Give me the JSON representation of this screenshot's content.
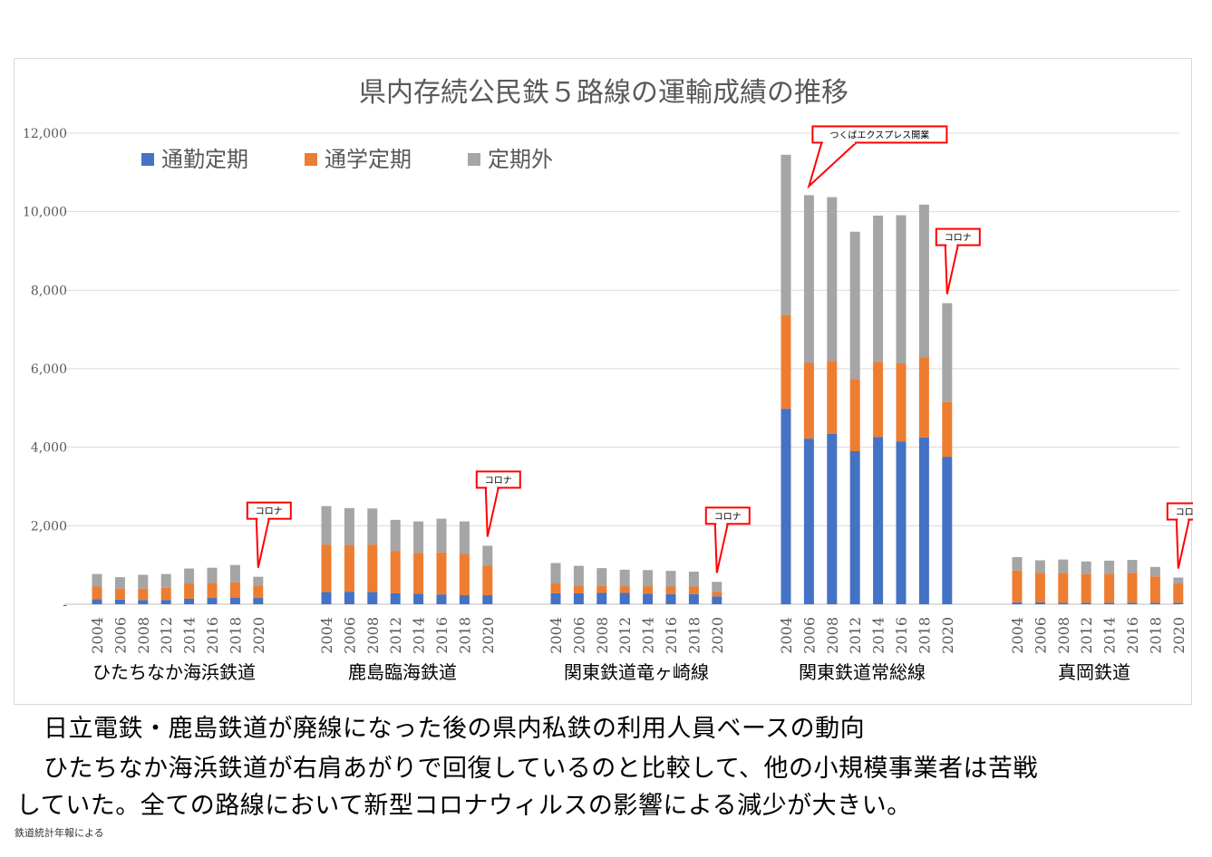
{
  "chart_data": {
    "type": "bar",
    "stacked": true,
    "title": "県内存続公民鉄５路線の運輸成績の推移",
    "ylim": [
      0,
      12000
    ],
    "yticks": [
      "-",
      "2,000",
      "4,000",
      "6,000",
      "8,000",
      "10,000",
      "12,000"
    ],
    "grid": true,
    "legend_position": "top-left",
    "series": [
      {
        "name": "通勤定期",
        "color": "#4472c4"
      },
      {
        "name": "通学定期",
        "color": "#ed7d31"
      },
      {
        "name": "定期外",
        "color": "#a5a5a5"
      }
    ],
    "groups": [
      {
        "name": "ひたちなか海浜鉄道",
        "years": [
          "2004",
          "2006",
          "2008",
          "2012",
          "2014",
          "2016",
          "2018",
          "2020"
        ],
        "commute": [
          130,
          120,
          110,
          110,
          140,
          160,
          170,
          160
        ],
        "school": [
          320,
          280,
          290,
          310,
          390,
          380,
          390,
          320
        ],
        "other": [
          320,
          290,
          350,
          350,
          380,
          390,
          440,
          220
        ]
      },
      {
        "name": "鹿島臨海鉄道",
        "years": [
          "2004",
          "2006",
          "2008",
          "2012",
          "2014",
          "2016",
          "2018",
          "2020"
        ],
        "commute": [
          310,
          320,
          310,
          280,
          270,
          250,
          230,
          230
        ],
        "school": [
          1210,
          1190,
          1210,
          1080,
          1040,
          1070,
          1050,
          760
        ],
        "other": [
          980,
          940,
          920,
          790,
          800,
          860,
          830,
          500
        ]
      },
      {
        "name": "関東鉄道竜ヶ崎線",
        "years": [
          "2004",
          "2006",
          "2008",
          "2012",
          "2014",
          "2016",
          "2018",
          "2020"
        ],
        "commute": [
          280,
          280,
          290,
          290,
          270,
          260,
          260,
          200
        ],
        "school": [
          250,
          200,
          180,
          170,
          190,
          190,
          190,
          110
        ],
        "other": [
          520,
          500,
          450,
          420,
          410,
          400,
          380,
          260
        ]
      },
      {
        "name": "関東鉄道常総線",
        "years": [
          "2004",
          "2006",
          "2008",
          "2012",
          "2014",
          "2016",
          "2018",
          "2020"
        ],
        "commute": [
          4980,
          4220,
          4340,
          3900,
          4260,
          4150,
          4250,
          3750
        ],
        "school": [
          2390,
          1930,
          1860,
          1840,
          1920,
          1990,
          2040,
          1400
        ],
        "other": [
          4080,
          4270,
          4170,
          3750,
          3720,
          3770,
          3890,
          2520
        ]
      },
      {
        "name": "真岡鉄道",
        "years": [
          "2004",
          "2006",
          "2008",
          "2012",
          "2014",
          "2016",
          "2018",
          "2020"
        ],
        "commute": [
          50,
          50,
          40,
          40,
          40,
          40,
          40,
          40
        ],
        "school": [
          810,
          750,
          760,
          730,
          740,
          760,
          670,
          490
        ],
        "other": [
          340,
          320,
          340,
          320,
          330,
          330,
          240,
          150
        ]
      }
    ],
    "annotations": [
      {
        "text": "コロナ",
        "group": 0,
        "bar": 7
      },
      {
        "text": "コロナ",
        "group": 1,
        "bar": 7
      },
      {
        "text": "コロナ",
        "group": 2,
        "bar": 7
      },
      {
        "text": "つくばエクスプレス開業",
        "group": 3,
        "bar": 1
      },
      {
        "text": "コロナ",
        "group": 3,
        "bar": 7
      },
      {
        "text": "コロナ",
        "group": 4,
        "bar": 7
      }
    ],
    "annotation_color": "#ff0000"
  },
  "caption": {
    "line1": "日立電鉄・鹿島鉄道が廃線になった後の県内私鉄の利用人員ベースの動向",
    "line2": "ひたちなか海浜鉄道が右肩あがりで回復しているのと比較して、他の小規模事業者は苦戦",
    "line3": "していた。全ての路線において新型コロナウィルスの影響による減少が大きい。"
  },
  "source_note": "鉄道統計年報による"
}
